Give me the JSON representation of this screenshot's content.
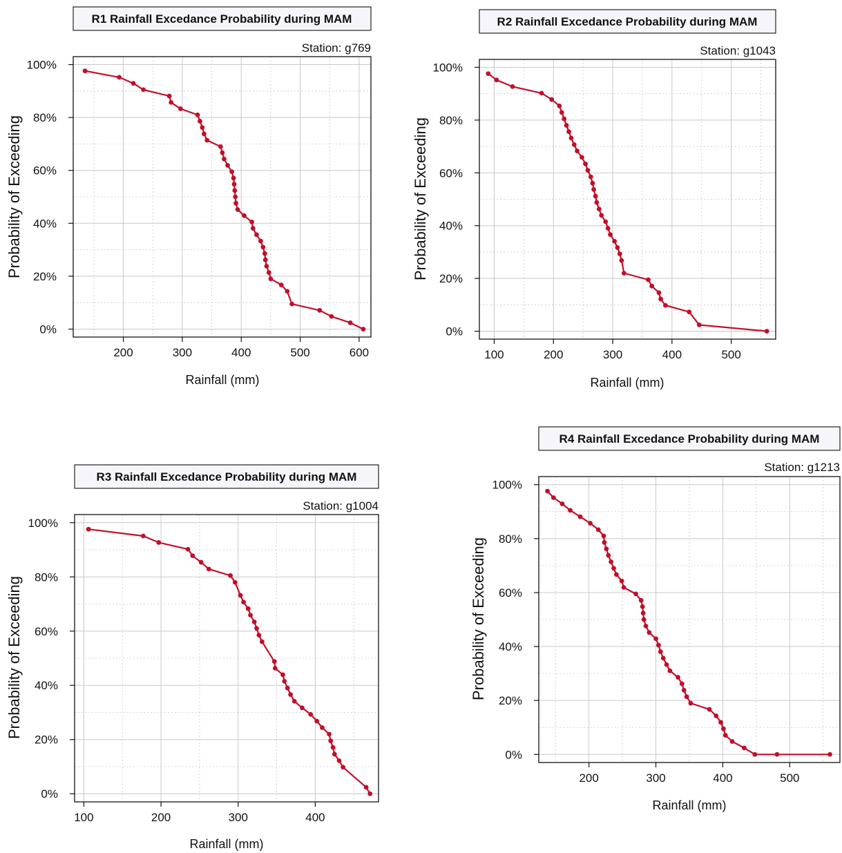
{
  "colors": {
    "line": "#c0102a",
    "grid": "#c8c8c8",
    "title_bg": "#f6f6fa"
  },
  "chart_data": [
    {
      "type": "line",
      "title": "R1 Rainfall Excedance Probability during MAM",
      "station": "Station: g769",
      "xlabel": "Rainfall (mm)",
      "ylabel": "Probability of Exceeding",
      "xlim": [
        115,
        620
      ],
      "ylim": [
        -3,
        103
      ],
      "x_ticks": [
        "200",
        "300",
        "400",
        "500",
        "600"
      ],
      "y_ticks": [
        "0%",
        "20%",
        "40%",
        "60%",
        "80%",
        "100%"
      ],
      "series": [
        {
          "x": [
            135,
            193,
            217,
            234,
            278,
            281,
            297,
            326,
            330,
            334,
            337,
            342,
            365,
            368,
            371,
            377,
            384,
            387,
            388,
            389,
            390,
            391,
            394,
            405,
            418,
            420,
            426,
            433,
            437,
            440,
            441,
            443,
            447,
            450,
            468,
            478,
            486,
            533,
            553,
            585,
            607
          ],
          "y": [
            97.6,
            95.2,
            92.9,
            90.5,
            88.1,
            85.7,
            83.3,
            81.0,
            78.6,
            76.2,
            73.8,
            71.4,
            69.0,
            66.7,
            64.3,
            61.9,
            59.5,
            57.1,
            54.8,
            52.4,
            50.0,
            47.6,
            45.2,
            42.9,
            40.5,
            38.1,
            35.7,
            33.3,
            31.0,
            28.6,
            26.2,
            23.8,
            21.4,
            19.0,
            16.7,
            14.3,
            9.5,
            7.1,
            4.8,
            2.4,
            0.0
          ]
        }
      ]
    },
    {
      "type": "line",
      "title": "R2 Rainfall Excedance Probability during MAM",
      "station": "Station: g1043",
      "xlabel": "Rainfall (mm)",
      "ylabel": "Probability of Exceeding",
      "xlim": [
        75,
        575
      ],
      "ylim": [
        -3,
        103
      ],
      "x_ticks": [
        "100",
        "200",
        "300",
        "400",
        "500"
      ],
      "y_ticks": [
        "0%",
        "20%",
        "40%",
        "60%",
        "80%",
        "100%"
      ],
      "series": [
        {
          "x": [
            90,
            104,
            131,
            180,
            197,
            210,
            214,
            218,
            222,
            226,
            230,
            235,
            240,
            248,
            254,
            258,
            263,
            266,
            268,
            271,
            273,
            277,
            281,
            288,
            292,
            296,
            303,
            308,
            312,
            315,
            319,
            360,
            366,
            378,
            381,
            389,
            429,
            446,
            560
          ],
          "y": [
            97.6,
            95.2,
            92.7,
            90.2,
            87.8,
            85.4,
            82.9,
            80.5,
            78.0,
            75.6,
            73.2,
            70.7,
            68.3,
            65.9,
            63.4,
            61.0,
            58.5,
            56.1,
            53.7,
            51.2,
            48.8,
            46.3,
            43.9,
            41.5,
            39.0,
            36.6,
            34.1,
            31.7,
            29.3,
            26.8,
            22.0,
            19.5,
            17.1,
            14.6,
            12.2,
            9.8,
            7.3,
            2.4,
            0.0
          ]
        }
      ]
    },
    {
      "type": "line",
      "title": "R3 Rainfall Excedance Probability during MAM",
      "station": "Station: g1004",
      "xlabel": "Rainfall (mm)",
      "ylabel": "Probability of Exceeding",
      "xlim": [
        88,
        482
      ],
      "ylim": [
        -3,
        103
      ],
      "x_ticks": [
        "100",
        "200",
        "300",
        "400"
      ],
      "y_ticks": [
        "0%",
        "20%",
        "40%",
        "60%",
        "80%",
        "100%"
      ],
      "series": [
        {
          "x": [
            106,
            177,
            197,
            235,
            241,
            252,
            262,
            290,
            296,
            303,
            307,
            313,
            316,
            321,
            324,
            327,
            331,
            347,
            348,
            358,
            360,
            364,
            368,
            373,
            383,
            394,
            402,
            409,
            418,
            420,
            423,
            425,
            431,
            436,
            466,
            471
          ],
          "y": [
            97.6,
            95.1,
            92.7,
            90.2,
            87.8,
            85.4,
            82.9,
            80.5,
            78.0,
            73.2,
            70.7,
            68.3,
            65.9,
            63.4,
            61.0,
            58.5,
            56.1,
            48.8,
            46.3,
            43.9,
            41.5,
            39.0,
            36.6,
            34.1,
            31.7,
            29.3,
            26.8,
            24.4,
            22.0,
            19.5,
            17.1,
            14.6,
            12.2,
            9.8,
            2.4,
            0.0
          ]
        }
      ]
    },
    {
      "type": "line",
      "title": "R4 Rainfall Excedance Probability during MAM",
      "station": "Station: g1213",
      "xlabel": "Rainfall (mm)",
      "ylabel": "Probability of Exceeding",
      "xlim": [
        125,
        575
      ],
      "ylim": [
        -3,
        103
      ],
      "x_ticks": [
        "200",
        "300",
        "400",
        "500"
      ],
      "y_ticks": [
        "0%",
        "20%",
        "40%",
        "60%",
        "80%",
        "100%"
      ],
      "series": [
        {
          "x": [
            138,
            147,
            160,
            172,
            187,
            202,
            214,
            222,
            223,
            226,
            229,
            233,
            237,
            241,
            249,
            252,
            270,
            278,
            280,
            281,
            282,
            285,
            290,
            300,
            304,
            307,
            311,
            316,
            321,
            333,
            339,
            342,
            346,
            352,
            380,
            390,
            397,
            401,
            404,
            414,
            432,
            448,
            481,
            560
          ],
          "y": [
            97.6,
            95.2,
            92.9,
            90.5,
            88.1,
            85.7,
            83.3,
            81.0,
            78.6,
            76.2,
            73.8,
            71.4,
            69.0,
            66.7,
            64.3,
            61.9,
            59.5,
            57.1,
            54.8,
            52.4,
            50.0,
            47.6,
            45.2,
            42.9,
            40.5,
            38.1,
            35.7,
            33.3,
            31.0,
            28.6,
            26.2,
            23.8,
            21.4,
            19.0,
            16.7,
            14.3,
            11.9,
            9.5,
            7.1,
            4.8,
            2.4,
            0.0,
            0.0,
            0.0
          ]
        }
      ]
    }
  ]
}
